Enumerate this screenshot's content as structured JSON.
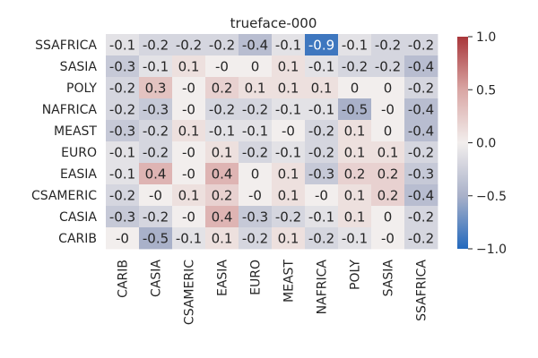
{
  "chart_data": {
    "type": "heatmap",
    "title": "trueface-000",
    "xlabel": "",
    "ylabel": "",
    "row_labels": [
      "SSAFRICA",
      "SASIA",
      "POLY",
      "NAFRICA",
      "MEAST",
      "EURO",
      "EASIA",
      "CSAMERIC",
      "CASIA",
      "CARIB"
    ],
    "col_labels": [
      "CARIB",
      "CASIA",
      "CSAMERIC",
      "EASIA",
      "EURO",
      "MEAST",
      "NAFRICA",
      "POLY",
      "SASIA",
      "SSAFRICA"
    ],
    "values": [
      [
        -0.1,
        -0.2,
        -0.2,
        -0.2,
        -0.4,
        -0.1,
        -0.9,
        -0.1,
        -0.2,
        -0.2
      ],
      [
        -0.3,
        -0.1,
        0.1,
        0,
        0,
        0.1,
        -0.1,
        -0.2,
        -0.2,
        -0.4
      ],
      [
        -0.2,
        0.3,
        0,
        0.2,
        0.1,
        0.1,
        0.1,
        0,
        0,
        -0.2
      ],
      [
        -0.2,
        -0.3,
        0,
        -0.2,
        -0.2,
        -0.1,
        -0.1,
        -0.5,
        0,
        -0.4
      ],
      [
        -0.3,
        -0.2,
        0.1,
        -0.1,
        -0.1,
        0,
        -0.2,
        0.1,
        0,
        -0.4
      ],
      [
        -0.1,
        -0.2,
        0,
        0.1,
        -0.2,
        -0.1,
        -0.2,
        0.1,
        0.1,
        -0.2
      ],
      [
        -0.1,
        0.4,
        0,
        0.4,
        0,
        0.1,
        -0.3,
        0.2,
        0.2,
        -0.3
      ],
      [
        -0.2,
        0,
        0.1,
        0.2,
        0,
        0.1,
        0,
        0.1,
        0.2,
        -0.4
      ],
      [
        -0.3,
        -0.2,
        0,
        0.4,
        -0.3,
        -0.2,
        -0.1,
        0.1,
        0,
        -0.2
      ],
      [
        0,
        -0.5,
        -0.1,
        0.1,
        -0.2,
        0.1,
        -0.2,
        -0.1,
        0,
        -0.2
      ]
    ],
    "cell_labels": [
      [
        "-0.1",
        "-0.2",
        "-0.2",
        "-0.2",
        "-0.4",
        "-0.1",
        "-0.9",
        "-0.1",
        "-0.2",
        "-0.2"
      ],
      [
        "-0.3",
        "-0.1",
        "0.1",
        "-0",
        "0",
        "0.1",
        "-0.1",
        "-0.2",
        "-0.2",
        "-0.4"
      ],
      [
        "-0.2",
        "0.3",
        "-0",
        "0.2",
        "0.1",
        "0.1",
        "0.1",
        "0",
        "0",
        "-0.2"
      ],
      [
        "-0.2",
        "-0.3",
        "-0",
        "-0.2",
        "-0.2",
        "-0.1",
        "-0.1",
        "-0.5",
        "-0",
        "-0.4"
      ],
      [
        "-0.3",
        "-0.2",
        "0.1",
        "-0.1",
        "-0.1",
        "-0",
        "-0.2",
        "0.1",
        "0",
        "-0.4"
      ],
      [
        "-0.1",
        "-0.2",
        "-0",
        "0.1",
        "-0.2",
        "-0.1",
        "-0.2",
        "0.1",
        "0.1",
        "-0.2"
      ],
      [
        "-0.1",
        "0.4",
        "-0",
        "0.4",
        "0",
        "0.1",
        "-0.3",
        "0.2",
        "0.2",
        "-0.3"
      ],
      [
        "-0.2",
        "-0",
        "0.1",
        "0.2",
        "-0",
        "0.1",
        "-0",
        "0.1",
        "0.2",
        "-0.4"
      ],
      [
        "-0.3",
        "-0.2",
        "-0",
        "0.4",
        "-0.3",
        "-0.2",
        "-0.1",
        "0.1",
        "0",
        "-0.2"
      ],
      [
        "-0",
        "-0.5",
        "-0.1",
        "0.1",
        "-0.2",
        "0.1",
        "-0.2",
        "-0.1",
        "-0",
        "-0.2"
      ]
    ],
    "color_range": [
      -1.0,
      1.0
    ],
    "colormap": "vlag",
    "colormap_stops": [
      "#2369bd",
      "#a9b1c9",
      "#f2eeed",
      "#d9a6a4",
      "#a9373b"
    ],
    "colorbar": {
      "ticks": [
        1.0,
        0.5,
        0.0,
        -0.5,
        -1.0
      ],
      "tick_labels": [
        "1.0",
        "0.5",
        "0.0",
        "−0.5",
        "−1.0"
      ]
    },
    "grid": false
  }
}
